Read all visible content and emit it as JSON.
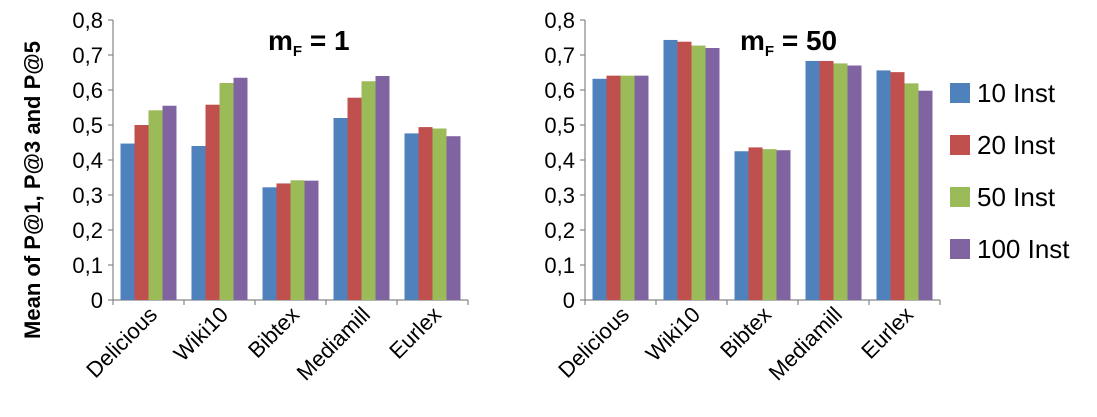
{
  "ylabel": "Mean of P@1, P@3 and P@5",
  "legend_position": "right",
  "chart_data": [
    {
      "type": "bar",
      "title": "m",
      "title_subscript": "F",
      "title_suffix": " = 1",
      "categories": [
        "Delicious",
        "Wiki10",
        "Bibtex",
        "Mediamill",
        "Eurlex"
      ],
      "ylim": [
        0,
        0.8
      ],
      "yticks": [
        "0",
        "0,1",
        "0,2",
        "0,3",
        "0,4",
        "0,5",
        "0,6",
        "0,7",
        "0,8"
      ],
      "grid": false,
      "series": [
        {
          "name": "10 Inst",
          "color": "#4F81BD",
          "values": [
            0.447,
            0.44,
            0.322,
            0.52,
            0.476
          ]
        },
        {
          "name": "20 Inst",
          "color": "#C0504D",
          "values": [
            0.5,
            0.558,
            0.333,
            0.578,
            0.494
          ]
        },
        {
          "name": "50 Inst",
          "color": "#9BBB59",
          "values": [
            0.542,
            0.62,
            0.342,
            0.625,
            0.49
          ]
        },
        {
          "name": "100 Inst",
          "color": "#8064A2",
          "values": [
            0.555,
            0.635,
            0.341,
            0.64,
            0.468
          ]
        }
      ]
    },
    {
      "type": "bar",
      "title": "m",
      "title_subscript": "F",
      "title_suffix": " = 50",
      "categories": [
        "Delicious",
        "Wiki10",
        "Bibtex",
        "Mediamill",
        "Eurlex"
      ],
      "ylim": [
        0,
        0.8
      ],
      "yticks": [
        "0",
        "0,1",
        "0,2",
        "0,3",
        "0,4",
        "0,5",
        "0,6",
        "0,7",
        "0,8"
      ],
      "grid": false,
      "series": [
        {
          "name": "10 Inst",
          "color": "#4F81BD",
          "values": [
            0.632,
            0.743,
            0.425,
            0.683,
            0.656
          ]
        },
        {
          "name": "20 Inst",
          "color": "#C0504D",
          "values": [
            0.641,
            0.738,
            0.436,
            0.683,
            0.651
          ]
        },
        {
          "name": "50 Inst",
          "color": "#9BBB59",
          "values": [
            0.641,
            0.727,
            0.431,
            0.676,
            0.619
          ]
        },
        {
          "name": "100 Inst",
          "color": "#8064A2",
          "values": [
            0.641,
            0.72,
            0.428,
            0.67,
            0.598
          ]
        }
      ]
    }
  ]
}
